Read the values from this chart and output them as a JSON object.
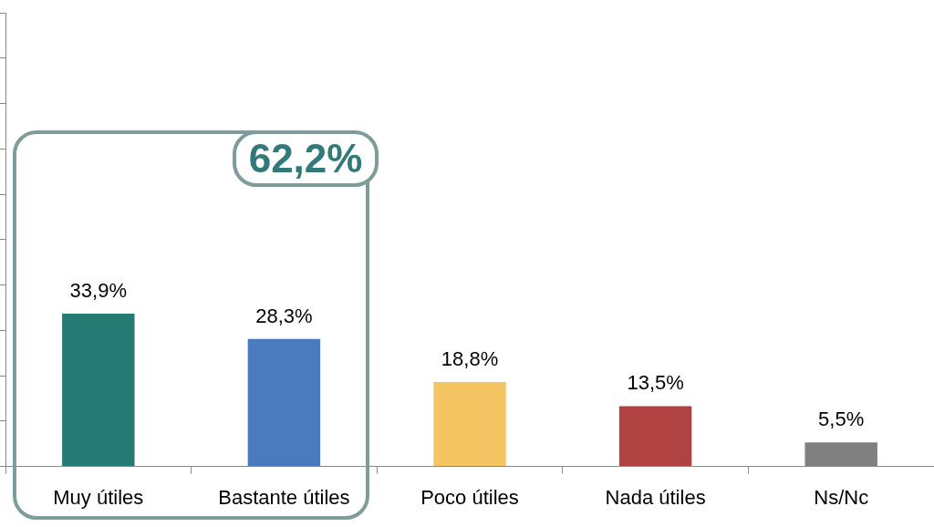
{
  "chart_data": {
    "type": "bar",
    "categories": [
      "Muy útiles",
      "Bastante útiles",
      "Poco útiles",
      "Nada útiles",
      "Ns/Nc"
    ],
    "values": [
      33.9,
      28.3,
      18.8,
      13.5,
      5.5
    ],
    "colors": [
      "#267a74",
      "#4a7bbf",
      "#f5c563",
      "#b04241",
      "#808080"
    ],
    "value_labels": [
      "33,9%",
      "28,3%",
      "18,8%",
      "13,5%",
      "5,5%"
    ],
    "ylim": [
      0,
      100
    ],
    "tick_labels": "x",
    "grid": false,
    "legend": false,
    "annotations": [
      "62,2%"
    ]
  }
}
